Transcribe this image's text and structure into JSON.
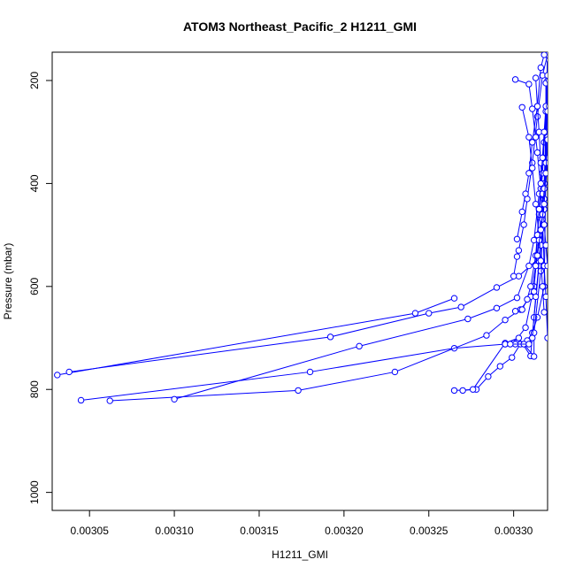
{
  "chart_data": {
    "type": "line",
    "title": "ATOM3 Northeast_Pacific_2 H1211_GMI",
    "xlabel": "H1211_GMI",
    "ylabel": "Pressure (mbar)",
    "xlim": [
      0.003028,
      0.00332
    ],
    "ylim": [
      1035,
      145
    ],
    "y_reversed": true,
    "x_ticks": [
      "0.00305",
      "0.00310",
      "0.00315",
      "0.00320",
      "0.00325",
      "0.00330"
    ],
    "x_tick_values": [
      0.00305,
      0.0031,
      0.00315,
      0.0032,
      0.00325,
      0.0033
    ],
    "y_ticks": [
      "200",
      "400",
      "600",
      "800",
      "1000"
    ],
    "y_tick_values": [
      200,
      400,
      600,
      800,
      1000
    ],
    "color": "#0000ff",
    "marker": "open-circle",
    "grid": false,
    "series": [
      {
        "values": [
          [
            0.003031,
            772
          ],
          [
            0.003242,
            652
          ],
          [
            0.003265,
            623
          ]
        ]
      },
      {
        "values": [
          [
            0.003038,
            766
          ],
          [
            0.003192,
            698
          ],
          [
            0.00325,
            652
          ],
          [
            0.003269,
            640
          ],
          [
            0.00329,
            602
          ],
          [
            0.003303,
            580
          ],
          [
            0.003315,
            545
          ],
          [
            0.003318,
            450
          ],
          [
            0.00332,
            350
          ],
          [
            0.003321,
            250
          ],
          [
            0.003321,
            150
          ]
        ]
      },
      {
        "values": [
          [
            0.003045,
            821
          ],
          [
            0.00318,
            766
          ],
          [
            0.003265,
            720
          ],
          [
            0.003295,
            712
          ],
          [
            0.0033,
            710
          ],
          [
            0.003307,
            680
          ],
          [
            0.003312,
            600
          ],
          [
            0.003315,
            500
          ],
          [
            0.003318,
            400
          ],
          [
            0.00332,
            300
          ],
          [
            0.00332,
            150
          ]
        ]
      },
      {
        "values": [
          [
            0.003062,
            822
          ],
          [
            0.003173,
            802
          ],
          [
            0.00323,
            766
          ],
          [
            0.003284,
            695
          ],
          [
            0.003295,
            665
          ],
          [
            0.003304,
            645
          ],
          [
            0.00331,
            620
          ],
          [
            0.003314,
            540
          ],
          [
            0.003317,
            450
          ],
          [
            0.003319,
            350
          ],
          [
            0.00332,
            150
          ]
        ]
      },
      {
        "values": [
          [
            0.0031,
            819
          ],
          [
            0.003209,
            716
          ],
          [
            0.003273,
            663
          ],
          [
            0.00329,
            642
          ],
          [
            0.003302,
            622
          ],
          [
            0.003309,
            560
          ],
          [
            0.003312,
            510
          ],
          [
            0.003315,
            420
          ],
          [
            0.003318,
            320
          ],
          [
            0.00332,
            200
          ],
          [
            0.00332,
            150
          ]
        ]
      },
      {
        "values": [
          [
            0.003265,
            802
          ],
          [
            0.003278,
            800
          ],
          [
            0.003285,
            775
          ],
          [
            0.003292,
            755
          ],
          [
            0.003299,
            738
          ],
          [
            0.003304,
            712
          ],
          [
            0.003308,
            705
          ],
          [
            0.003311,
            690
          ],
          [
            0.003314,
            660
          ],
          [
            0.003318,
            600
          ],
          [
            0.00332,
            150
          ]
        ]
      },
      {
        "values": [
          [
            0.00327,
            802
          ],
          [
            0.003276,
            800
          ],
          [
            0.003295,
            710
          ],
          [
            0.003303,
            700
          ],
          [
            0.00331,
            735
          ],
          [
            0.003312,
            660
          ],
          [
            0.003315,
            560
          ],
          [
            0.003318,
            450
          ],
          [
            0.00332,
            150
          ]
        ]
      },
      {
        "values": [
          [
            0.003295,
            712
          ],
          [
            0.003301,
            712
          ],
          [
            0.003306,
            712
          ],
          [
            0.003312,
            736
          ],
          [
            0.003312,
            690
          ],
          [
            0.003316,
            570
          ],
          [
            0.003318,
            430
          ],
          [
            0.00332,
            150
          ]
        ]
      },
      {
        "values": [
          [
            0.003298,
            712
          ],
          [
            0.003309,
            712
          ],
          [
            0.003311,
            700
          ],
          [
            0.003313,
            620
          ],
          [
            0.003316,
            520
          ],
          [
            0.003318,
            400
          ],
          [
            0.003319,
            300
          ],
          [
            0.00332,
            150
          ]
        ]
      },
      {
        "values": [
          [
            0.003301,
            648
          ],
          [
            0.003305,
            645
          ],
          [
            0.003308,
            625
          ],
          [
            0.00331,
            600
          ],
          [
            0.003313,
            540
          ],
          [
            0.003315,
            460
          ],
          [
            0.003317,
            380
          ],
          [
            0.003319,
            260
          ],
          [
            0.00332,
            150
          ]
        ]
      },
      {
        "values": [
          [
            0.0033,
            580
          ],
          [
            0.003302,
            542
          ],
          [
            0.003303,
            530
          ],
          [
            0.003306,
            480
          ],
          [
            0.003308,
            430
          ],
          [
            0.003311,
            360
          ],
          [
            0.003314,
            270
          ],
          [
            0.003317,
            190
          ],
          [
            0.00332,
            150
          ]
        ]
      },
      {
        "values": [
          [
            0.003302,
            508
          ],
          [
            0.003305,
            455
          ],
          [
            0.003307,
            420
          ],
          [
            0.003309,
            380
          ],
          [
            0.003311,
            320
          ],
          [
            0.003314,
            250
          ],
          [
            0.003316,
            175
          ],
          [
            0.003318,
            150
          ]
        ]
      },
      {
        "values": [
          [
            0.003301,
            198
          ],
          [
            0.003309,
            207
          ],
          [
            0.003311,
            255
          ],
          [
            0.003313,
            310
          ],
          [
            0.003314,
            340
          ],
          [
            0.003316,
            410
          ],
          [
            0.003317,
            470
          ],
          [
            0.003318,
            560
          ],
          [
            0.003319,
            620
          ],
          [
            0.00332,
            700
          ]
        ]
      },
      {
        "values": [
          [
            0.003305,
            252
          ],
          [
            0.003309,
            310
          ],
          [
            0.003311,
            370
          ],
          [
            0.003313,
            440
          ],
          [
            0.003315,
            500
          ],
          [
            0.003316,
            550
          ],
          [
            0.003317,
            600
          ],
          [
            0.003318,
            650
          ]
        ]
      },
      {
        "values": [
          [
            0.003313,
            195
          ],
          [
            0.003314,
            250
          ],
          [
            0.003315,
            300
          ],
          [
            0.003316,
            360
          ],
          [
            0.003317,
            420
          ],
          [
            0.003318,
            480
          ],
          [
            0.003319,
            520
          ],
          [
            0.00332,
            560
          ]
        ]
      },
      {
        "values": [
          [
            0.003319,
            205
          ],
          [
            0.003319,
            250
          ],
          [
            0.003318,
            300
          ],
          [
            0.003317,
            350
          ],
          [
            0.003316,
            400
          ],
          [
            0.003315,
            450
          ],
          [
            0.003314,
            500
          ],
          [
            0.003313,
            560
          ],
          [
            0.003312,
            610
          ]
        ]
      },
      {
        "values": [
          [
            0.00332,
            190
          ],
          [
            0.00332,
            260
          ],
          [
            0.00332,
            310
          ],
          [
            0.003319,
            360
          ],
          [
            0.003318,
            410
          ],
          [
            0.003317,
            460
          ],
          [
            0.003315,
            510
          ],
          [
            0.003313,
            560
          ]
        ]
      },
      {
        "values": [
          [
            0.003321,
            160
          ],
          [
            0.003321,
            200
          ],
          [
            0.003321,
            250
          ],
          [
            0.00332,
            315
          ],
          [
            0.003319,
            380
          ],
          [
            0.003318,
            440
          ],
          [
            0.003316,
            490
          ],
          [
            0.003314,
            540
          ]
        ]
      }
    ]
  }
}
